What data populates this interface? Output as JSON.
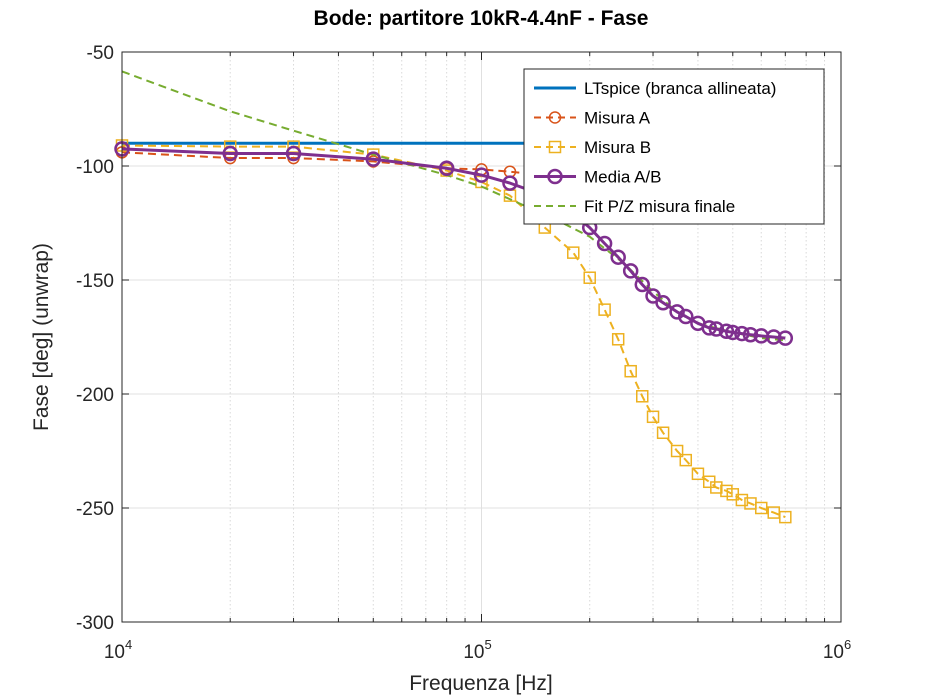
{
  "chart_data": {
    "type": "line",
    "title": "Bode: partitore 10kR-4.4nF - Fase",
    "xlabel": "Frequenza [Hz]",
    "ylabel": "Fase [deg] (unwrap)",
    "xscale": "log",
    "xlim": [
      10000,
      1000000
    ],
    "ylim": [
      -300,
      -50
    ],
    "xticks": [
      {
        "base": "10",
        "exp": "4"
      },
      {
        "base": "10",
        "exp": "5"
      },
      {
        "base": "10",
        "exp": "6"
      }
    ],
    "yticks": [
      "-300",
      "-250",
      "-200",
      "-150",
      "-100",
      "-50"
    ],
    "grid": true,
    "legend_position": "top-right",
    "series": [
      {
        "name": "LTspice (branca allineata)",
        "color": "#0072BD",
        "style": "solid",
        "marker": "none",
        "x": [
          10000,
          20000,
          30000,
          50000,
          70000,
          100000,
          130000,
          160000
        ],
        "y": [
          -90,
          -90,
          -90,
          -90,
          -90,
          -90,
          -90,
          -90
        ]
      },
      {
        "name": "Misura A",
        "color": "#D95319",
        "style": "dashed",
        "marker": "circle",
        "x": [
          10000,
          20000,
          30000,
          50000,
          80000,
          100000,
          120000,
          150000
        ],
        "y": [
          -94,
          -96.5,
          -96.5,
          -98,
          -101,
          -101.5,
          -102.5,
          -104
        ]
      },
      {
        "name": "Misura B",
        "color": "#EDB120",
        "style": "dashed",
        "marker": "square",
        "x": [
          10000,
          20000,
          30000,
          50000,
          80000,
          100000,
          120000,
          150000,
          180000,
          200000,
          220000,
          240000,
          260000,
          280000,
          300000,
          320000,
          350000,
          370000,
          400000,
          430000,
          450000,
          480000,
          500000,
          530000,
          560000,
          600000,
          650000,
          700000
        ],
        "y": [
          -91,
          -91.5,
          -91.5,
          -95,
          -102,
          -107,
          -113,
          -127,
          -138,
          -149,
          -163,
          -176,
          -190,
          -201,
          -210,
          -217,
          -225,
          -229,
          -235,
          -238.5,
          -241,
          -242.5,
          -244,
          -246.5,
          -248,
          -250,
          -252,
          -254
        ]
      },
      {
        "name": "Media A/B",
        "color": "#7E2F8E",
        "style": "solid",
        "marker": "circle",
        "x": [
          10000,
          20000,
          30000,
          50000,
          80000,
          100000,
          120000,
          150000,
          180000,
          200000,
          220000,
          240000,
          260000,
          280000,
          300000,
          320000,
          350000,
          370000,
          400000,
          430000,
          450000,
          480000,
          500000,
          530000,
          560000,
          600000,
          650000,
          700000
        ],
        "y": [
          -92.5,
          -94.5,
          -94.5,
          -97,
          -101,
          -104,
          -107.5,
          -113,
          -121,
          -127,
          -134,
          -140,
          -146,
          -152,
          -157,
          -160,
          -164,
          -166,
          -169,
          -171,
          -171.5,
          -172.5,
          -173,
          -173.5,
          -174,
          -174.5,
          -175,
          -175.5
        ]
      },
      {
        "name": "Fit P/Z misura finale",
        "color": "#77AC30",
        "style": "dashed",
        "marker": "none",
        "x": [
          10000,
          20000,
          30000,
          50000,
          80000,
          100000,
          130000,
          150000,
          200000,
          250000,
          300000,
          350000,
          400000,
          500000,
          600000,
          700000
        ],
        "y": [
          -58.5,
          -76,
          -84.5,
          -95,
          -104,
          -109,
          -117,
          -121,
          -131,
          -143,
          -155,
          -164,
          -169,
          -173,
          -175.5,
          -176.5
        ]
      }
    ]
  }
}
